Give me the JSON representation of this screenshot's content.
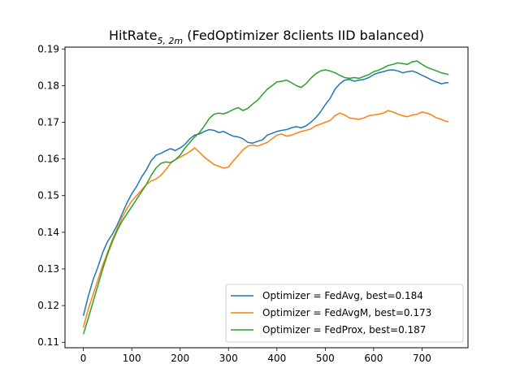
{
  "chart_data": {
    "type": "line",
    "title": {
      "main": "HitRate",
      "subscript": "5, 2m",
      "rest": " (FedOptimizer 8clients IID balanced)"
    },
    "xlabel": "",
    "ylabel": "",
    "xlim": [
      -38,
      795
    ],
    "ylim": [
      0.1085,
      0.1905
    ],
    "xticks": [
      0,
      100,
      200,
      300,
      400,
      500,
      600,
      700
    ],
    "yticks": [
      0.11,
      0.12,
      0.13,
      0.14,
      0.15,
      0.16,
      0.17,
      0.18,
      0.19
    ],
    "ytick_labels": [
      "0.11",
      "0.12",
      "0.13",
      "0.14",
      "0.15",
      "0.16",
      "0.17",
      "0.18",
      "0.19"
    ],
    "grid": false,
    "legend_position": "lower-right",
    "series": [
      {
        "name": "Optimizer = FedAvg, best=0.184",
        "color": "#1f77b4",
        "x": [
          0,
          10,
          20,
          30,
          40,
          50,
          60,
          70,
          80,
          90,
          100,
          110,
          120,
          130,
          140,
          150,
          160,
          170,
          180,
          190,
          200,
          210,
          220,
          230,
          240,
          250,
          260,
          270,
          280,
          290,
          300,
          310,
          320,
          330,
          340,
          350,
          360,
          370,
          380,
          390,
          400,
          410,
          420,
          430,
          440,
          450,
          460,
          470,
          480,
          490,
          500,
          510,
          520,
          530,
          540,
          550,
          560,
          570,
          580,
          590,
          600,
          610,
          620,
          630,
          640,
          650,
          660,
          670,
          680,
          690,
          700,
          710,
          720,
          730,
          740,
          750,
          755
        ],
        "y": [
          0.1172,
          0.1225,
          0.127,
          0.1305,
          0.1345,
          0.1375,
          0.1395,
          0.142,
          0.145,
          0.148,
          0.1505,
          0.1525,
          0.155,
          0.157,
          0.1595,
          0.161,
          0.1615,
          0.1622,
          0.1628,
          0.1623,
          0.163,
          0.164,
          0.1655,
          0.1665,
          0.1668,
          0.1675,
          0.168,
          0.1678,
          0.1672,
          0.1675,
          0.1668,
          0.1662,
          0.166,
          0.1655,
          0.1645,
          0.1643,
          0.1648,
          0.1652,
          0.1665,
          0.167,
          0.1675,
          0.1678,
          0.168,
          0.1685,
          0.1688,
          0.1685,
          0.169,
          0.17,
          0.1712,
          0.1728,
          0.1748,
          0.1765,
          0.179,
          0.1805,
          0.1815,
          0.1817,
          0.1812,
          0.1815,
          0.1817,
          0.1822,
          0.183,
          0.1835,
          0.1838,
          0.1842,
          0.1843,
          0.184,
          0.1835,
          0.1838,
          0.184,
          0.1835,
          0.1828,
          0.1822,
          0.1815,
          0.181,
          0.1805,
          0.1808,
          0.1808
        ]
      },
      {
        "name": "Optimizer = FedAvgM, best=0.173",
        "color": "#ff7f0e",
        "x": [
          0,
          10,
          20,
          30,
          40,
          50,
          60,
          70,
          80,
          90,
          100,
          110,
          120,
          130,
          140,
          150,
          160,
          170,
          180,
          190,
          200,
          210,
          220,
          230,
          240,
          250,
          260,
          270,
          280,
          290,
          300,
          310,
          320,
          330,
          340,
          350,
          360,
          370,
          380,
          390,
          400,
          410,
          420,
          430,
          440,
          450,
          460,
          470,
          480,
          490,
          500,
          510,
          520,
          530,
          540,
          550,
          560,
          570,
          580,
          590,
          600,
          610,
          620,
          630,
          640,
          650,
          660,
          670,
          680,
          690,
          700,
          710,
          720,
          730,
          740,
          750,
          755
        ],
        "y": [
          0.114,
          0.119,
          0.123,
          0.127,
          0.131,
          0.1345,
          0.138,
          0.141,
          0.144,
          0.1465,
          0.1485,
          0.15,
          0.1515,
          0.153,
          0.154,
          0.1545,
          0.1555,
          0.157,
          0.1588,
          0.1598,
          0.1605,
          0.1612,
          0.162,
          0.163,
          0.1618,
          0.1605,
          0.1595,
          0.1585,
          0.158,
          0.1575,
          0.1578,
          0.1595,
          0.161,
          0.1625,
          0.1635,
          0.1638,
          0.1635,
          0.164,
          0.1645,
          0.1655,
          0.1665,
          0.1668,
          0.1662,
          0.1665,
          0.167,
          0.1675,
          0.1678,
          0.1682,
          0.169,
          0.1695,
          0.17,
          0.1705,
          0.1718,
          0.1725,
          0.172,
          0.1712,
          0.171,
          0.1708,
          0.1712,
          0.1718,
          0.172,
          0.1722,
          0.1725,
          0.1732,
          0.1728,
          0.1722,
          0.1718,
          0.1715,
          0.172,
          0.1722,
          0.1728,
          0.1725,
          0.172,
          0.1712,
          0.1708,
          0.1702,
          0.1702
        ]
      },
      {
        "name": "Optimizer = FedProx, best=0.187",
        "color": "#2ca02c",
        "x": [
          0,
          10,
          20,
          30,
          40,
          50,
          60,
          70,
          80,
          90,
          100,
          110,
          120,
          130,
          140,
          150,
          160,
          170,
          180,
          190,
          200,
          210,
          220,
          230,
          240,
          250,
          260,
          270,
          280,
          290,
          300,
          310,
          320,
          330,
          340,
          350,
          360,
          370,
          380,
          390,
          400,
          410,
          420,
          430,
          440,
          450,
          460,
          470,
          480,
          490,
          500,
          510,
          520,
          530,
          540,
          550,
          560,
          570,
          580,
          590,
          600,
          610,
          620,
          630,
          640,
          650,
          660,
          670,
          680,
          690,
          700,
          710,
          720,
          730,
          740,
          750,
          755
        ],
        "y": [
          0.1122,
          0.1165,
          0.121,
          0.1255,
          0.13,
          0.134,
          0.1375,
          0.1405,
          0.143,
          0.145,
          0.147,
          0.149,
          0.151,
          0.153,
          0.1555,
          0.1575,
          0.1588,
          0.1592,
          0.159,
          0.1598,
          0.161,
          0.163,
          0.1645,
          0.166,
          0.1672,
          0.169,
          0.171,
          0.1722,
          0.1725,
          0.1723,
          0.1728,
          0.1735,
          0.174,
          0.1732,
          0.1738,
          0.175,
          0.176,
          0.1775,
          0.179,
          0.18,
          0.181,
          0.1812,
          0.1815,
          0.1808,
          0.18,
          0.1795,
          0.1805,
          0.182,
          0.1832,
          0.184,
          0.1843,
          0.184,
          0.1835,
          0.1828,
          0.1822,
          0.182,
          0.1822,
          0.182,
          0.1825,
          0.183,
          0.1838,
          0.1842,
          0.1848,
          0.1855,
          0.1858,
          0.1862,
          0.186,
          0.1858,
          0.1865,
          0.1867,
          0.1858,
          0.185,
          0.1845,
          0.184,
          0.1835,
          0.1832,
          0.183
        ]
      }
    ]
  }
}
